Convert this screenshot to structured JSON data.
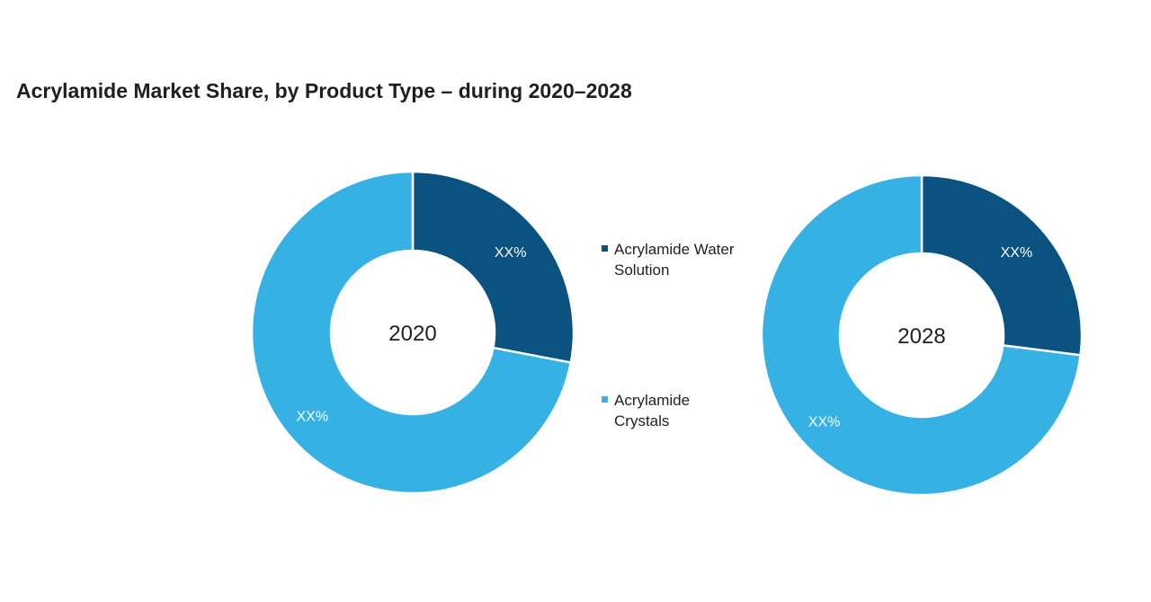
{
  "chart_data": {
    "type": "pie",
    "title": "Acrylamide Market Share, by Product Type – during 2020–2028",
    "legend_placement": "center",
    "series_names": [
      "Acrylamide Water Solution",
      "Acrylamide Crystals"
    ],
    "colors": [
      "#0a5280",
      "#35b2e3"
    ],
    "charts": [
      {
        "center_label": "2020",
        "slices": [
          {
            "name": "Acrylamide Water Solution",
            "value": 28,
            "label": "XX%"
          },
          {
            "name": "Acrylamide Crystals",
            "value": 72,
            "label": "XX%"
          }
        ]
      },
      {
        "center_label": "2028",
        "slices": [
          {
            "name": "Acrylamide Water Solution",
            "value": 27,
            "label": "XX%"
          },
          {
            "name": "Acrylamide Crystals",
            "value": 73,
            "label": "XX%"
          }
        ]
      }
    ]
  }
}
